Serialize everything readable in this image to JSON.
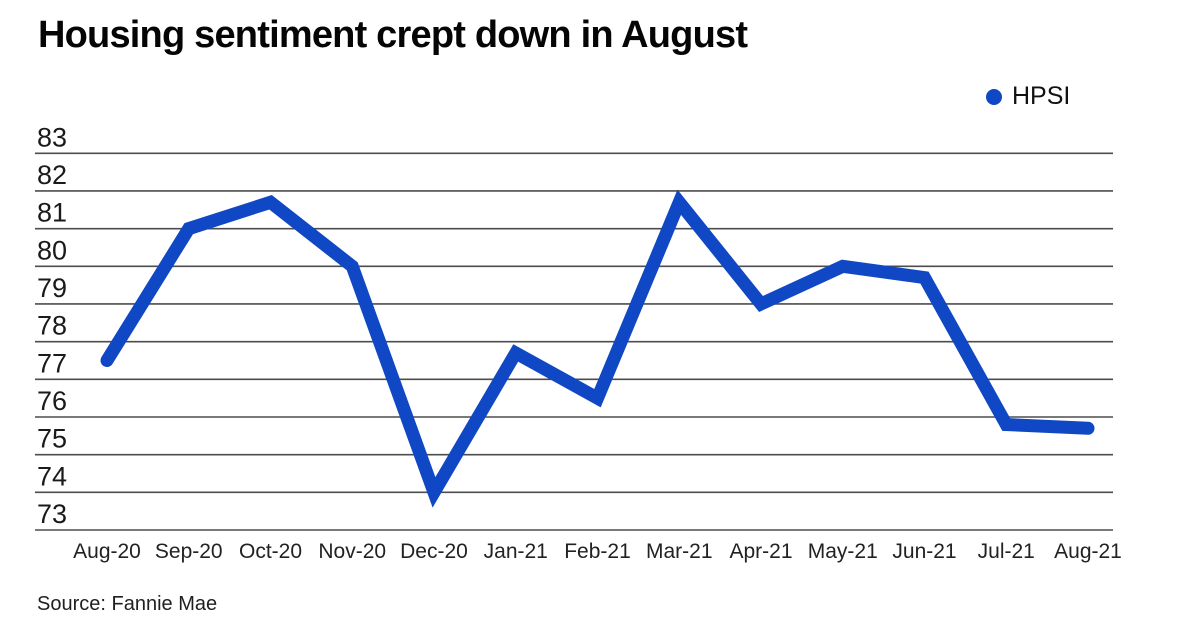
{
  "header": {
    "title": "Housing sentiment crept down in August"
  },
  "legend": {
    "label": "HPSI",
    "marker_color": "#1047c4"
  },
  "footer": {
    "source": "Source: Fannie Mae"
  },
  "chart_data": {
    "type": "line",
    "title": "Housing sentiment crept down in August",
    "categories": [
      "Aug-20",
      "Sep-20",
      "Oct-20",
      "Nov-20",
      "Dec-20",
      "Jan-21",
      "Feb-21",
      "Mar-21",
      "Apr-21",
      "May-21",
      "Jun-21",
      "Jul-21",
      "Aug-21"
    ],
    "series": [
      {
        "name": "HPSI",
        "color": "#1047c4",
        "values": [
          77.5,
          81.0,
          81.7,
          80.0,
          74.0,
          77.7,
          76.5,
          81.7,
          79.0,
          80.0,
          79.7,
          75.8,
          75.7
        ]
      }
    ],
    "xlabel": "",
    "ylabel": "",
    "ylim": [
      73,
      83
    ],
    "ytick_step": 1,
    "yticks": [
      73,
      74,
      75,
      76,
      77,
      78,
      79,
      80,
      81,
      82,
      83
    ],
    "grid": "horizontal",
    "legend_position": "top-right",
    "source": "Source: Fannie Mae"
  }
}
